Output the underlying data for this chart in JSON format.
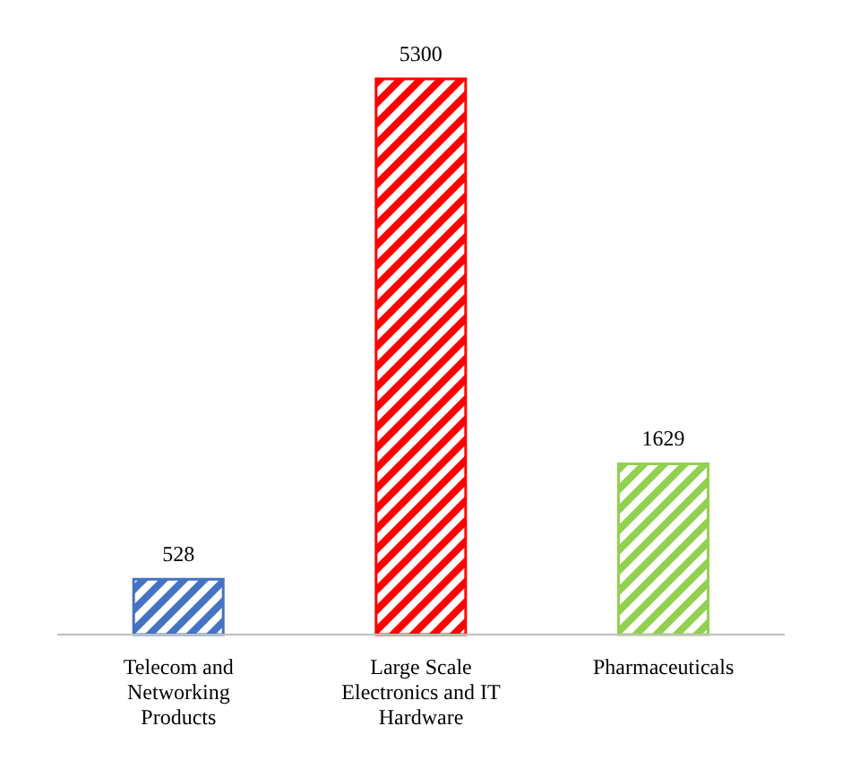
{
  "chart_data": {
    "type": "bar",
    "categories": [
      "Telecom and Networking Products",
      "Large Scale Electronics and IT Hardware",
      "Pharmaceuticals"
    ],
    "values": [
      528,
      5300,
      1629
    ],
    "colors": [
      "#4472c4",
      "#ff0000",
      "#92d050"
    ],
    "data_labels": true
  }
}
